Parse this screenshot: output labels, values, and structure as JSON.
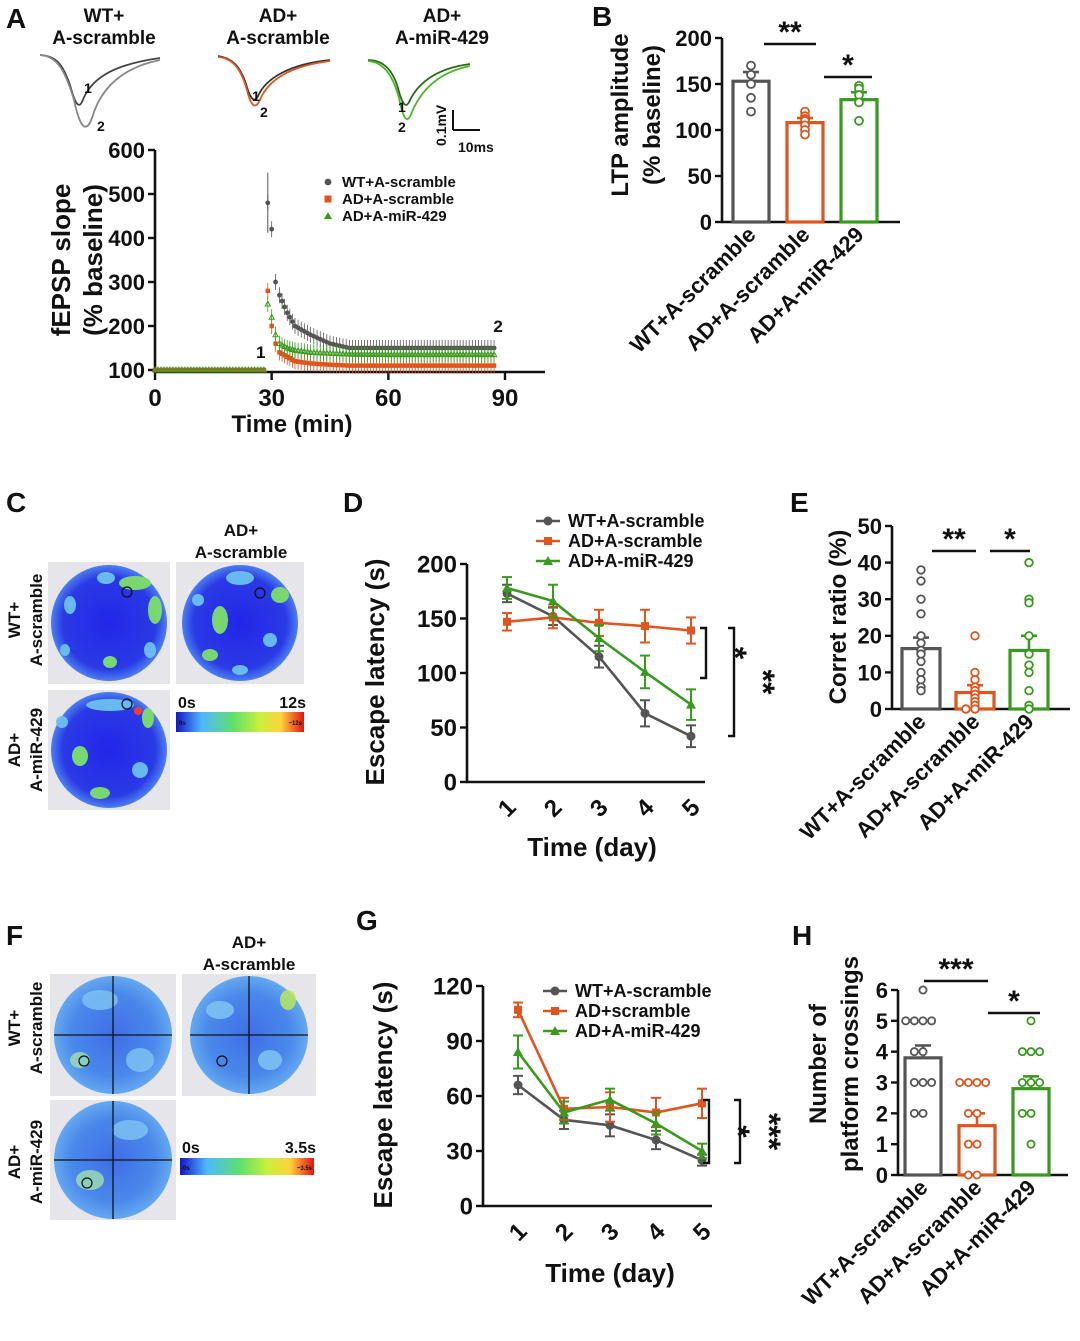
{
  "colors": {
    "wt": "#555555",
    "ad": "#e0541e",
    "mir": "#3a9a1e"
  },
  "panels": {
    "A": {
      "letter": "A",
      "trace_titles": [
        [
          "WT+",
          "A-scramble"
        ],
        [
          "AD+",
          "A-scramble"
        ],
        [
          "AD+",
          "A-miR-429"
        ]
      ],
      "trace_marks": [
        "1",
        "2"
      ],
      "scalebar": {
        "v": "0.1mV",
        "h": "10ms"
      },
      "ylabel": [
        "fEPSP slope",
        "(% baseline)"
      ],
      "xlabel": "Time (min)",
      "yticks": [
        100,
        200,
        300,
        400,
        500,
        600
      ],
      "xticks": [
        0,
        30,
        60,
        90
      ],
      "legend": [
        "WT+A-scramble",
        "AD+A-scramble",
        "AD+A-miR-429"
      ],
      "marks": [
        "1",
        "2"
      ]
    },
    "B": {
      "letter": "B",
      "ylabel": [
        "LTP amplitude",
        "(% baseline)"
      ],
      "yticks": [
        0,
        50,
        100,
        150,
        200
      ],
      "categories": [
        "WT+A-scramble",
        "AD+A-scramble",
        "AD+A-miR-429"
      ],
      "sig": [
        "**",
        "*"
      ]
    },
    "C": {
      "letter": "C",
      "titles": [
        [
          "WT+",
          "A-scramble"
        ],
        [
          "AD+",
          "A-scramble"
        ],
        [
          "AD+",
          "A-miR-429"
        ]
      ],
      "scale": [
        "0s",
        "12s"
      ],
      "scale_small": [
        "0s",
        "~12s"
      ]
    },
    "D": {
      "letter": "D",
      "ylabel": "Escape latency (s)",
      "xlabel": "Time (day)",
      "yticks": [
        0,
        50,
        100,
        150,
        200
      ],
      "xticks": [
        "1",
        "2",
        "3",
        "4",
        "5"
      ],
      "legend": [
        "WT+A-scramble",
        "AD+A-scramble",
        "AD+A-miR-429"
      ],
      "sig": [
        "*",
        "**"
      ]
    },
    "E": {
      "letter": "E",
      "ylabel": "Corret ratio (%)",
      "yticks": [
        0,
        10,
        20,
        30,
        40,
        50
      ],
      "categories": [
        "WT+A-scramble",
        "AD+A-scramble",
        "AD+A-miR-429"
      ],
      "sig": [
        "**",
        "*"
      ]
    },
    "F": {
      "letter": "F",
      "titles": [
        [
          "WT+",
          "A-scramble"
        ],
        [
          "AD+",
          "A-scramble"
        ],
        [
          "AD+",
          "A-miR-429"
        ]
      ],
      "scale": [
        "0s",
        "3.5s"
      ],
      "scale_small": [
        "0s",
        "~3.5s"
      ]
    },
    "G": {
      "letter": "G",
      "ylabel": "Escape latency (s)",
      "xlabel": "Time (day)",
      "yticks": [
        0,
        30,
        60,
        90,
        120
      ],
      "xticks": [
        "1",
        "2",
        "3",
        "4",
        "5"
      ],
      "legend": [
        "WT+A-scramble",
        "AD+scramble",
        "AD+A-miR-429"
      ],
      "sig": [
        "*",
        "***"
      ]
    },
    "H": {
      "letter": "H",
      "ylabel": [
        "Number of",
        "platform crossings"
      ],
      "yticks": [
        0,
        1,
        2,
        3,
        4,
        5,
        6
      ],
      "categories": [
        "WT+A-scramble",
        "AD+A-scramble",
        "AD+A-miR-429"
      ],
      "sig": [
        "***",
        "*"
      ]
    }
  },
  "chart_data": [
    {
      "panel": "A",
      "type": "scatter",
      "xlabel": "Time (min)",
      "ylabel": "fEPSP slope (% baseline)",
      "xlim": [
        0,
        90
      ],
      "ylim": [
        100,
        600
      ],
      "series": [
        {
          "name": "WT+A-scramble",
          "x": [
            0,
            10,
            20,
            28,
            29,
            30,
            31,
            32,
            34,
            36,
            40,
            45,
            50,
            60,
            70,
            80,
            88
          ],
          "y": [
            100,
            100,
            100,
            100,
            480,
            420,
            300,
            270,
            230,
            200,
            180,
            160,
            150,
            150,
            150,
            150,
            150
          ]
        },
        {
          "name": "AD+A-scramble",
          "x": [
            0,
            10,
            20,
            28,
            29,
            30,
            31,
            32,
            34,
            36,
            40,
            45,
            50,
            60,
            70,
            80,
            88
          ],
          "y": [
            100,
            100,
            100,
            100,
            280,
            200,
            160,
            140,
            130,
            120,
            115,
            112,
            110,
            110,
            110,
            110,
            110
          ]
        },
        {
          "name": "AD+A-miR-429",
          "x": [
            0,
            10,
            20,
            28,
            29,
            30,
            31,
            32,
            34,
            36,
            40,
            45,
            50,
            60,
            70,
            80,
            88
          ],
          "y": [
            100,
            100,
            100,
            100,
            250,
            220,
            180,
            160,
            150,
            145,
            140,
            138,
            136,
            135,
            135,
            135,
            135
          ]
        }
      ]
    },
    {
      "panel": "B",
      "type": "bar",
      "ylabel": "LTP amplitude (% baseline)",
      "ylim": [
        0,
        200
      ],
      "categories": [
        "WT+A-scramble",
        "AD+A-scramble",
        "AD+A-miR-429"
      ],
      "values": [
        153,
        108,
        133
      ],
      "errors": [
        10,
        5,
        8
      ],
      "points": [
        [
          170,
          160,
          150,
          135,
          120
        ],
        [
          120,
          115,
          112,
          110,
          105,
          100,
          95
        ],
        [
          148,
          145,
          138,
          130,
          110
        ]
      ]
    },
    {
      "panel": "D",
      "type": "line",
      "xlabel": "Time (day)",
      "ylabel": "Escape latency (s)",
      "ylim": [
        0,
        200
      ],
      "x": [
        1,
        2,
        3,
        4,
        5
      ],
      "series": [
        {
          "name": "WT+A-scramble",
          "values": [
            173,
            152,
            115,
            63,
            42
          ],
          "errors": [
            8,
            8,
            10,
            12,
            10
          ]
        },
        {
          "name": "AD+A-scramble",
          "values": [
            147,
            151,
            146,
            143,
            139
          ],
          "errors": [
            8,
            10,
            12,
            15,
            12
          ]
        },
        {
          "name": "AD+A-miR-429",
          "values": [
            178,
            166,
            132,
            101,
            71
          ],
          "errors": [
            10,
            15,
            12,
            15,
            14
          ]
        }
      ]
    },
    {
      "panel": "E",
      "type": "bar",
      "ylabel": "Corret ratio (%)",
      "ylim": [
        0,
        50
      ],
      "categories": [
        "WT+A-scramble",
        "AD+A-scramble",
        "AD+A-miR-429"
      ],
      "values": [
        16.5,
        4.5,
        16
      ],
      "errors": [
        3,
        2,
        4
      ],
      "points": [
        [
          38,
          35,
          30,
          26,
          20,
          18,
          16,
          15,
          13,
          10,
          8,
          6,
          5
        ],
        [
          20,
          10,
          8,
          6,
          5,
          4,
          3,
          2,
          1,
          0,
          0
        ],
        [
          40,
          30,
          29,
          20,
          15,
          12,
          10,
          5,
          1,
          0
        ]
      ]
    },
    {
      "panel": "G",
      "type": "line",
      "xlabel": "Time (day)",
      "ylabel": "Escape latency (s)",
      "ylim": [
        0,
        120
      ],
      "x": [
        1,
        2,
        3,
        4,
        5
      ],
      "series": [
        {
          "name": "WT+A-scramble",
          "values": [
            66,
            47,
            44,
            36,
            25
          ],
          "errors": [
            5,
            5,
            6,
            5,
            3
          ]
        },
        {
          "name": "AD+scramble",
          "values": [
            107,
            53,
            54,
            51,
            56
          ],
          "errors": [
            4,
            6,
            8,
            8,
            8
          ]
        },
        {
          "name": "AD+A-miR-429",
          "values": [
            84,
            51,
            58,
            45,
            30
          ],
          "errors": [
            9,
            6,
            6,
            6,
            4
          ]
        }
      ]
    },
    {
      "panel": "H",
      "type": "bar",
      "ylabel": "Number of platform crossings",
      "ylim": [
        0,
        6
      ],
      "categories": [
        "WT+A-scramble",
        "AD+A-scramble",
        "AD+A-miR-429"
      ],
      "values": [
        3.8,
        1.6,
        2.8
      ],
      "errors": [
        0.4,
        0.4,
        0.4
      ],
      "points": [
        [
          6,
          5,
          5,
          5,
          5,
          4,
          4,
          3,
          3,
          3,
          2,
          2
        ],
        [
          3,
          3,
          3,
          3,
          2,
          2,
          1,
          1,
          0,
          0
        ],
        [
          5,
          4,
          4,
          4,
          3,
          3,
          3,
          2,
          2,
          1
        ]
      ]
    }
  ]
}
